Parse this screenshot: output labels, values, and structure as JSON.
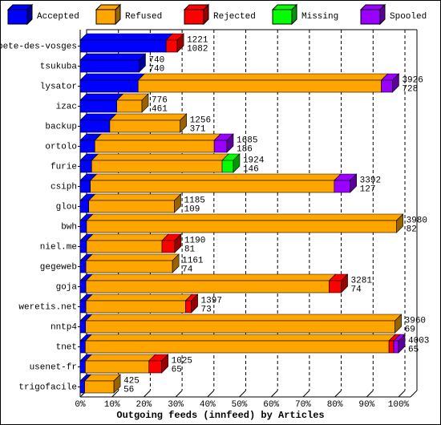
{
  "chart_data": {
    "type": "bar3d-stacked-horizontal",
    "title": "Outgoing feeds (innfeed) by Articles",
    "categories": [
      "bete-des-vosges",
      "tsukuba",
      "lysator",
      "izac",
      "backup",
      "ortolo",
      "furie",
      "csiph",
      "glou",
      "bwh",
      "niel.me",
      "gegeweb",
      "goja",
      "weretis.net",
      "nntp4",
      "tnet",
      "usenet-fr",
      "trigofacile"
    ],
    "offered": [
      1221,
      740,
      3926,
      776,
      1256,
      1685,
      1924,
      3392,
      1185,
      3980,
      1190,
      1161,
      3281,
      1397,
      3960,
      4003,
      1025,
      425
    ],
    "accepted": [
      1082,
      740,
      728,
      461,
      371,
      186,
      146,
      127,
      109,
      82,
      81,
      74,
      74,
      73,
      69,
      65,
      65,
      56
    ],
    "series": [
      {
        "name": "Accepted",
        "color": "#0000ff",
        "values": [
          27.0,
          18.5,
          18.2,
          11.5,
          9.3,
          4.6,
          3.6,
          3.2,
          2.7,
          2.0,
          2.0,
          1.8,
          1.8,
          1.8,
          1.7,
          1.6,
          1.6,
          1.4
        ]
      },
      {
        "name": "Refused",
        "color": "#ffa500",
        "values": [
          0,
          0,
          76.4,
          7.9,
          22.1,
          37.5,
          41.0,
          76.6,
          26.9,
          97.4,
          23.7,
          27.2,
          76.4,
          31.3,
          97.2,
          95.4,
          20.0,
          9.2
        ]
      },
      {
        "name": "Rejected",
        "color": "#ff0000",
        "values": [
          3.5,
          0,
          0,
          0,
          0,
          0,
          0,
          0,
          0,
          0,
          4.0,
          0,
          3.8,
          1.8,
          0,
          1.5,
          4.0,
          0
        ]
      },
      {
        "name": "Missing",
        "color": "#00ff00",
        "values": [
          0,
          0,
          0,
          0,
          0,
          0,
          3.5,
          0,
          0,
          0,
          0,
          0,
          0,
          0,
          0,
          0,
          0,
          0
        ]
      },
      {
        "name": "Spooled",
        "color": "#9900ff",
        "values": [
          0,
          0,
          3.5,
          0,
          0,
          4.0,
          0,
          5.0,
          0,
          0,
          0,
          0,
          0,
          0,
          0,
          1.5,
          0,
          0
        ]
      }
    ],
    "xlim": [
      0,
      100
    ],
    "xticks": [
      {
        "value": 0,
        "label": "0%"
      },
      {
        "value": 10,
        "label": "10%"
      },
      {
        "value": 20,
        "label": "20%"
      },
      {
        "value": 30,
        "label": "30%"
      },
      {
        "value": 40,
        "label": "40%"
      },
      {
        "value": 50,
        "label": "50%"
      },
      {
        "value": 60,
        "label": "60%"
      },
      {
        "value": 70,
        "label": "70%"
      },
      {
        "value": 80,
        "label": "80%"
      },
      {
        "value": 90,
        "label": "90%"
      },
      {
        "value": 100,
        "label": "100%"
      }
    ],
    "grid": true
  }
}
